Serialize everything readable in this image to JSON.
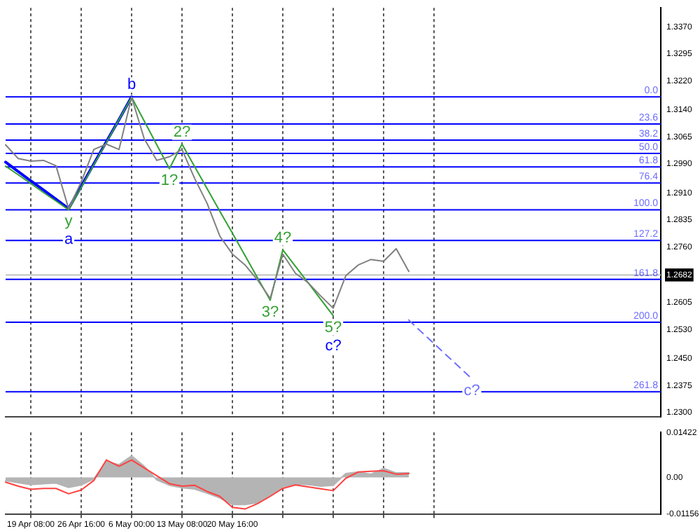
{
  "chart_data": [
    {
      "type": "line",
      "ylim": [
        1.2289,
        1.3423
      ],
      "categories": [
        null,
        null,
        null,
        null,
        null,
        null,
        null,
        null,
        null,
        null,
        null,
        null,
        null,
        null,
        null,
        null,
        null,
        null,
        null,
        null,
        null,
        null,
        null,
        null,
        null,
        null,
        null,
        null,
        null,
        null,
        null,
        null,
        null,
        null,
        null,
        null,
        null,
        null,
        null,
        null,
        null,
        null,
        null,
        null,
        null,
        null,
        null,
        null,
        null,
        null,
        null,
        null,
        null
      ],
      "yticks": [
        {
          "value": 1.337,
          "label": "1.3370"
        },
        {
          "value": 1.3295,
          "label": "1.3295"
        },
        {
          "value": 1.322,
          "label": "1.3220"
        },
        {
          "value": 1.314,
          "label": "1.3140"
        },
        {
          "value": 1.3065,
          "label": "1.3065"
        },
        {
          "value": 1.299,
          "label": "1.2990"
        },
        {
          "value": 1.291,
          "label": "1.2910"
        },
        {
          "value": 1.2835,
          "label": "1.2835"
        },
        {
          "value": 1.276,
          "label": "1.2760"
        },
        {
          "value": 1.2682,
          "label": "1.2682"
        },
        {
          "value": 1.2605,
          "label": "1.2605"
        },
        {
          "value": 1.253,
          "label": "1.2530"
        },
        {
          "value": 1.245,
          "label": "1.2450"
        },
        {
          "value": 1.2375,
          "label": "1.2375"
        },
        {
          "value": 1.23,
          "label": "1.2300"
        }
      ],
      "tick_labels": "y",
      "grid": "x",
      "legend": false,
      "marker": "none",
      "series": [
        {
          "color": "#808080",
          "values": [
            1.3043,
            1.3005,
            1.2998,
            1.3,
            1.2985,
            1.2866,
            1.294,
            1.303,
            1.3045,
            1.303,
            1.3175,
            1.306,
            1.3,
            1.301,
            1.303,
            1.295,
            1.288,
            1.279,
            1.274,
            1.271,
            1.2668,
            1.2617,
            1.274,
            1.2687,
            1.2661,
            1.2624,
            1.259,
            1.268,
            1.271,
            1.2725,
            1.272,
            1.2755,
            1.2692,
            null,
            null,
            null,
            null,
            null,
            null,
            null,
            null,
            null,
            null,
            null,
            null,
            null,
            null,
            null,
            null,
            null,
            null,
            null,
            null
          ]
        },
        {
          "color": "#33a033",
          "values": [
            1.2984,
            1.296,
            1.2936,
            1.2911,
            1.2887,
            1.2863,
            1.2925,
            1.2988,
            1.305,
            1.3113,
            1.3175,
            1.3109,
            1.3043,
            1.2977,
            1.3045,
            1.2983,
            1.2921,
            1.2859,
            1.2798,
            1.2736,
            1.2674,
            1.2612,
            1.2752,
            1.2706,
            1.2661,
            1.2615,
            1.2569,
            null,
            null,
            null,
            null,
            null,
            null,
            null,
            null,
            null,
            null,
            null,
            null,
            null,
            null,
            null,
            null,
            null,
            null,
            null,
            null,
            null,
            null,
            null,
            null,
            null,
            null
          ]
        },
        {
          "color": "#0000ff",
          "values": [
            1.2995,
            1.2969,
            1.2943,
            1.2918,
            1.2892,
            1.2866,
            1.2928,
            1.299,
            1.3052,
            1.3113,
            1.3176,
            null,
            null,
            null,
            null,
            null,
            null,
            null,
            null,
            null,
            null,
            null,
            null,
            null,
            null,
            null,
            null,
            null,
            null,
            null,
            null,
            null,
            null,
            null,
            null,
            null,
            null,
            null,
            null,
            null,
            null,
            null,
            null,
            null,
            null,
            null,
            null,
            null,
            null,
            null,
            null,
            null,
            null
          ]
        },
        {
          "color": "#6f6fff",
          "line_style": "dashed",
          "values": [
            null,
            null,
            null,
            null,
            null,
            null,
            null,
            null,
            null,
            null,
            null,
            null,
            null,
            null,
            null,
            null,
            null,
            null,
            null,
            null,
            null,
            null,
            null,
            null,
            null,
            null,
            null,
            null,
            null,
            null,
            null,
            null,
            1.2557,
            1.2524,
            1.2492,
            1.2459,
            1.2427,
            1.2394,
            null,
            null,
            null,
            null,
            null,
            null,
            null,
            null,
            null,
            null,
            null,
            null,
            null,
            null,
            null
          ]
        }
      ],
      "ref_lines": [
        {
          "axis": "y",
          "value": 1.2682,
          "color": "#c0c0c0"
        },
        {
          "axis": "y",
          "value": 1.3176,
          "color": "#0000ff"
        },
        {
          "axis": "y",
          "value": 1.3101,
          "color": "#0000ff"
        },
        {
          "axis": "y",
          "value": 1.3056,
          "color": "#0000ff"
        },
        {
          "axis": "y",
          "value": 1.3019,
          "color": "#0000ff"
        },
        {
          "axis": "y",
          "value": 1.2982,
          "color": "#0000ff"
        },
        {
          "axis": "y",
          "value": 1.2937,
          "color": "#0000ff"
        },
        {
          "axis": "y",
          "value": 1.2863,
          "color": "#0000ff"
        },
        {
          "axis": "y",
          "value": 1.2778,
          "color": "#0000ff"
        },
        {
          "axis": "y",
          "value": 1.267,
          "color": "#0000ff"
        },
        {
          "axis": "y",
          "value": 1.2551,
          "color": "#0000ff"
        },
        {
          "axis": "y",
          "value": 1.2358,
          "color": "#0000ff"
        }
      ],
      "annotations": [
        {
          "text": "b",
          "y": 1.3176
        },
        {
          "text": "y",
          "y": 1.2863
        },
        "a",
        {
          "text": "1?",
          "y": 1.2977
        },
        {
          "text": "2?",
          "y": 1.3045
        },
        {
          "text": "3?",
          "y": 1.2612
        },
        {
          "text": "4?",
          "y": 1.2752
        },
        {
          "text": "5?",
          "y": 1.2569
        },
        "c?",
        {
          "text": "c?",
          "y": 1.2394
        },
        {
          "text": "0.0",
          "y": 1.3176
        },
        {
          "text": "23.6",
          "y": 1.3101
        },
        {
          "text": "38.2",
          "y": 1.3056
        },
        {
          "text": "50.0",
          "y": 1.3019
        },
        {
          "text": "61.8",
          "y": 1.2982
        },
        {
          "text": "76.4",
          "y": 1.2937
        },
        {
          "text": "100.0",
          "y": 1.2863
        },
        {
          "text": "127.2",
          "y": 1.2778
        },
        {
          "text": "161.8",
          "y": 1.267
        },
        {
          "text": "200.0",
          "y": 1.2551
        },
        {
          "text": "261.8",
          "y": 1.2358
        }
      ]
    },
    {
      "type": "area",
      "ylim": [
        -0.01156,
        0.01422
      ],
      "categories": [
        null,
        null,
        "19 Apr 08:00",
        null,
        null,
        null,
        "26 Apr 16:00",
        null,
        null,
        null,
        "6 May 00:00",
        null,
        null,
        null,
        "13 May 08:00",
        null,
        null,
        null,
        "20 May 16:00",
        null,
        null,
        null,
        null,
        null,
        null,
        null,
        null,
        null,
        null,
        null,
        null,
        null,
        null,
        null,
        null,
        null,
        null,
        null,
        null,
        null,
        null,
        null,
        null,
        null,
        null,
        null,
        null,
        null,
        null,
        null,
        null,
        null,
        null
      ],
      "yticks": [
        {
          "value": 0.01422,
          "label": "0.01422"
        },
        {
          "value": 0,
          "label": "0.00"
        },
        {
          "value": -0.01156,
          "label": "-0.01156"
        }
      ],
      "grid": "x",
      "legend": false,
      "marker": "none",
      "series": [
        {
          "color": "#b4b4b4",
          "values": [
            -0.001,
            -0.0017,
            -0.0023,
            -0.002,
            -0.0018,
            -0.0032,
            -0.0024,
            -0.0005,
            0.005,
            0.004,
            0.0068,
            0.0035,
            -0.0008,
            -0.0025,
            -0.0033,
            -0.0037,
            -0.005,
            -0.0065,
            -0.0086,
            -0.0086,
            -0.008,
            -0.0056,
            -0.003,
            -0.0021,
            -0.0023,
            -0.0028,
            -0.0025,
            0.0012,
            0.0017,
            0.001,
            0.0028,
            0.0014,
            0.0014,
            null,
            null,
            null,
            null,
            null,
            null,
            null,
            null,
            null,
            null,
            null,
            null,
            null,
            null,
            null,
            null,
            null,
            null,
            null,
            null
          ]
        },
        {
          "type": "line",
          "color": "#ff4040",
          "values": [
            -0.0015,
            -0.0028,
            -0.0038,
            -0.0035,
            -0.0035,
            -0.0052,
            -0.004,
            -0.001,
            0.0055,
            0.0035,
            0.0055,
            0.003,
            0.0005,
            -0.002,
            -0.0028,
            -0.0025,
            -0.0045,
            -0.006,
            -0.0095,
            -0.01,
            -0.0083,
            -0.006,
            -0.0035,
            -0.0024,
            -0.003,
            -0.0036,
            -0.0042,
            -0.0003,
            0.0017,
            0.0019,
            0.0021,
            0.001,
            0.0012,
            null,
            null,
            null,
            null,
            null,
            null,
            null,
            null,
            null,
            null,
            null,
            null,
            null,
            null,
            null,
            null,
            null,
            null,
            null,
            null
          ]
        }
      ]
    }
  ]
}
